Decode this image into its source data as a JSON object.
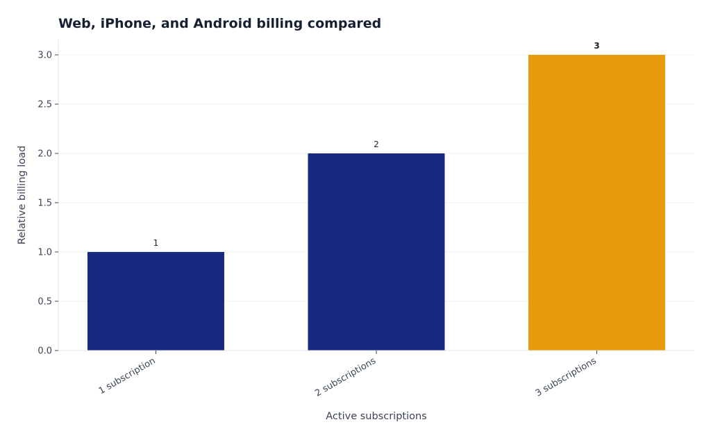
{
  "chart_data": {
    "type": "bar",
    "title": "Web, iPhone, and Android billing compared",
    "xlabel": "Active subscriptions",
    "ylabel": "Relative billing load",
    "categories": [
      "1 subscription",
      "2 subscriptions",
      "3 subscriptions"
    ],
    "values": [
      1,
      2,
      3
    ],
    "data_labels": [
      "1",
      "2",
      "3"
    ],
    "ylim": [
      0,
      3.15
    ],
    "yticks": [
      0.0,
      0.5,
      1.0,
      1.5,
      2.0,
      2.5,
      3.0
    ],
    "ytick_labels": [
      "0.0",
      "0.5",
      "1.0",
      "1.5",
      "2.0",
      "2.5",
      "3.0"
    ],
    "grid": "horizontal",
    "legend": "none",
    "colors": [
      "#172983",
      "#172983",
      "#e89c0c"
    ],
    "highlight_label_color": "#e0a000",
    "default_label_color": "#1b1f2a"
  }
}
